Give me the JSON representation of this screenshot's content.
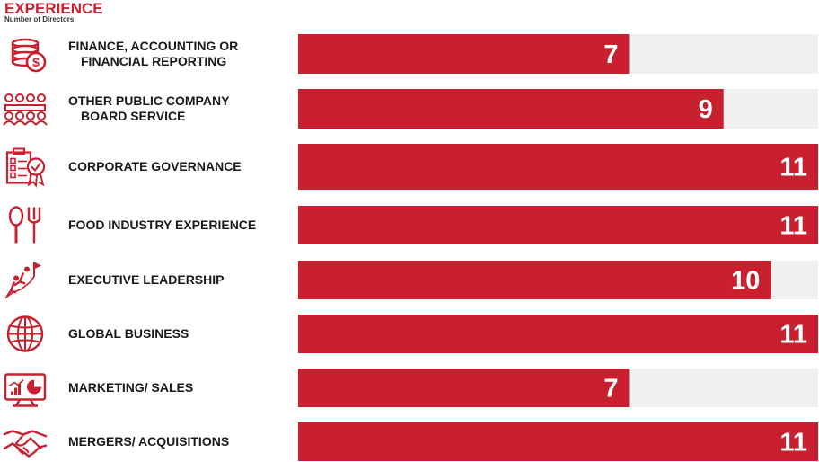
{
  "chart_data": {
    "type": "bar",
    "orientation": "horizontal",
    "title": "EXPERIENCE",
    "subtitle": "Number of Directors",
    "categories": [
      [
        "FINANCE, ACCOUNTING OR",
        "FINANCIAL REPORTING"
      ],
      [
        "OTHER PUBLIC COMPANY",
        "BOARD SERVICE"
      ],
      [
        "CORPORATE GOVERNANCE"
      ],
      [
        "FOOD INDUSTRY EXPERIENCE"
      ],
      [
        "EXECUTIVE LEADERSHIP"
      ],
      [
        "GLOBAL BUSINESS"
      ],
      [
        "MARKETING/ SALES"
      ],
      [
        "MERGERS/ ACQUISITIONS"
      ]
    ],
    "values": [
      7,
      9,
      11,
      11,
      10,
      11,
      7,
      11
    ],
    "xlim": [
      0,
      11
    ],
    "icons": [
      "coins-dollar-icon",
      "boardroom-meeting-icon",
      "clipboard-badge-icon",
      "spoon-fork-icon",
      "climbing-flag-icon",
      "globe-icon",
      "monitor-chart-icon",
      "handshake-icon"
    ],
    "colors": {
      "bar": "#c8202f",
      "track": "#f0f0f0",
      "label": "#ffffff",
      "icon": "#c8202f"
    }
  }
}
